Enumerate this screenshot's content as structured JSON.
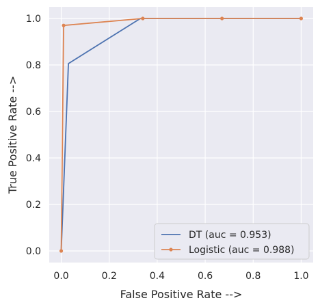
{
  "chart_data": {
    "type": "line",
    "title": "",
    "xlabel": "False Positive Rate -->",
    "ylabel": "True Positive Rate -->",
    "xlim": [
      -0.05,
      1.05
    ],
    "ylim": [
      -0.05,
      1.05
    ],
    "xticks": [
      0.0,
      0.2,
      0.4,
      0.6,
      0.8,
      1.0
    ],
    "yticks": [
      0.0,
      0.2,
      0.4,
      0.6,
      0.8,
      1.0
    ],
    "xtick_labels": [
      "0.0",
      "0.2",
      "0.4",
      "0.6",
      "0.8",
      "1.0"
    ],
    "ytick_labels": [
      "0.0",
      "0.2",
      "0.4",
      "0.6",
      "0.8",
      "1.0"
    ],
    "grid": true,
    "legend_position": "lower-right",
    "series": [
      {
        "name": "DT (auc = 0.953)",
        "color": "#4c72b0",
        "marker": "none",
        "x": [
          0.0,
          0.03,
          0.33,
          1.0
        ],
        "y": [
          0.0,
          0.806,
          1.0,
          1.0
        ]
      },
      {
        "name": "Logistic (auc = 0.988)",
        "color": "#dd8452",
        "marker": "circle",
        "x": [
          0.0,
          0.01,
          0.34,
          0.67,
          1.0
        ],
        "y": [
          0.0,
          0.97,
          1.0,
          1.0,
          1.0
        ]
      }
    ]
  }
}
